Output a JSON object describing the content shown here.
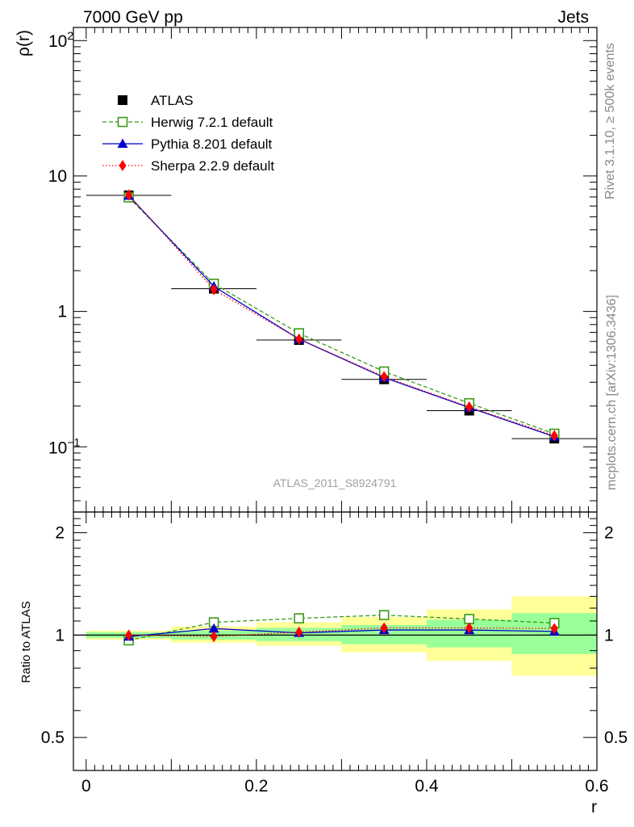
{
  "header": {
    "left": "7000 GeV pp",
    "right": "Jets"
  },
  "side_texts": {
    "rivet": "Rivet 3.1.10, ≥ 500k events",
    "mcplots": "mcplots.cern.ch [arXiv:1306.3436]"
  },
  "watermark": "ATLAS_2011_S8924791",
  "colors": {
    "atlas": "#000000",
    "herwig": "#3a9a1a",
    "pythia": "#0000cc",
    "sherpa": "#ff0000",
    "band_outer": "#ffff99",
    "band_inner": "#99ff99"
  },
  "chart_data": [
    {
      "type": "line",
      "panel": "main",
      "ylabel": "ρ(r)",
      "yscale": "log",
      "ylim": [
        0.033,
        125
      ],
      "xlim": [
        -0.015,
        0.6
      ],
      "y_ticklabels": [
        {
          "v": 0.1,
          "base": "10",
          "exp": "−1"
        },
        {
          "v": 1,
          "label": "1"
        },
        {
          "v": 10,
          "label": "10"
        },
        {
          "v": 100,
          "base": "10",
          "exp": "2"
        }
      ],
      "legend": {
        "placement": "top-left",
        "entries": [
          {
            "key": "atlas",
            "label": "ATLAS"
          },
          {
            "key": "herwig",
            "label": "Herwig 7.2.1 default"
          },
          {
            "key": "pythia",
            "label": "Pythia 8.201 default"
          },
          {
            "key": "sherpa",
            "label": "Sherpa 2.2.9 default"
          }
        ]
      },
      "x": [
        0.05,
        0.15,
        0.25,
        0.35,
        0.45,
        0.55
      ],
      "x_bins": [
        [
          0.0,
          0.1
        ],
        [
          0.1,
          0.2
        ],
        [
          0.2,
          0.3
        ],
        [
          0.3,
          0.4
        ],
        [
          0.4,
          0.5
        ],
        [
          0.5,
          0.6
        ]
      ],
      "series": [
        {
          "key": "atlas",
          "name": "ATLAS",
          "marker": "square",
          "values": [
            7.2,
            1.47,
            0.615,
            0.315,
            0.185,
            0.115
          ]
        },
        {
          "key": "herwig",
          "name": "Herwig 7.2.1 default",
          "marker": "open-square",
          "dash": "dashed",
          "values": [
            6.95,
            1.6,
            0.69,
            0.36,
            0.21,
            0.125
          ]
        },
        {
          "key": "pythia",
          "name": "Pythia 8.201 default",
          "marker": "triangle",
          "dash": "solid",
          "values": [
            7.15,
            1.53,
            0.625,
            0.325,
            0.195,
            0.119
          ]
        },
        {
          "key": "sherpa",
          "name": "Sherpa 2.2.9 default",
          "marker": "diamond",
          "dash": "dotted",
          "values": [
            7.25,
            1.45,
            0.625,
            0.33,
            0.197,
            0.121
          ]
        }
      ]
    },
    {
      "type": "line",
      "panel": "ratio",
      "xlabel": "r",
      "ylabel": "Ratio to ATLAS",
      "yscale": "log",
      "ylim": [
        0.4,
        2.3
      ],
      "xlim": [
        -0.015,
        0.6
      ],
      "x_ticklabels": [
        {
          "v": 0,
          "label": "0"
        },
        {
          "v": 0.2,
          "label": "0.2"
        },
        {
          "v": 0.4,
          "label": "0.4"
        },
        {
          "v": 0.6,
          "label": "0.6"
        }
      ],
      "y_ticklabels": [
        {
          "v": 0.5,
          "label": "0.5"
        },
        {
          "v": 1,
          "label": "1"
        },
        {
          "v": 2,
          "label": "2"
        }
      ],
      "bands": {
        "x_bins": [
          [
            0.0,
            0.1
          ],
          [
            0.1,
            0.2
          ],
          [
            0.2,
            0.3
          ],
          [
            0.3,
            0.4
          ],
          [
            0.4,
            0.5
          ],
          [
            0.5,
            0.6
          ]
        ],
        "outer": [
          [
            0.97,
            1.03
          ],
          [
            0.95,
            1.06
          ],
          [
            0.93,
            1.09
          ],
          [
            0.89,
            1.13
          ],
          [
            0.84,
            1.19
          ],
          [
            0.76,
            1.3
          ]
        ],
        "inner": [
          [
            0.98,
            1.02
          ],
          [
            0.97,
            1.03
          ],
          [
            0.96,
            1.05
          ],
          [
            0.94,
            1.07
          ],
          [
            0.92,
            1.11
          ],
          [
            0.88,
            1.16
          ]
        ]
      },
      "x": [
        0.05,
        0.15,
        0.25,
        0.35,
        0.45,
        0.55
      ],
      "series": [
        {
          "key": "herwig",
          "name": "Herwig 7.2.1 default",
          "marker": "open-square",
          "dash": "dashed",
          "values": [
            0.965,
            1.09,
            1.12,
            1.145,
            1.115,
            1.085
          ]
        },
        {
          "key": "pythia",
          "name": "Pythia 8.201 default",
          "marker": "triangle",
          "dash": "solid",
          "values": [
            0.99,
            1.045,
            1.015,
            1.035,
            1.035,
            1.025
          ]
        },
        {
          "key": "sherpa",
          "name": "Sherpa 2.2.9 default",
          "marker": "diamond",
          "dash": "dotted",
          "values": [
            1.0,
            0.99,
            1.02,
            1.05,
            1.05,
            1.045
          ]
        }
      ]
    }
  ]
}
